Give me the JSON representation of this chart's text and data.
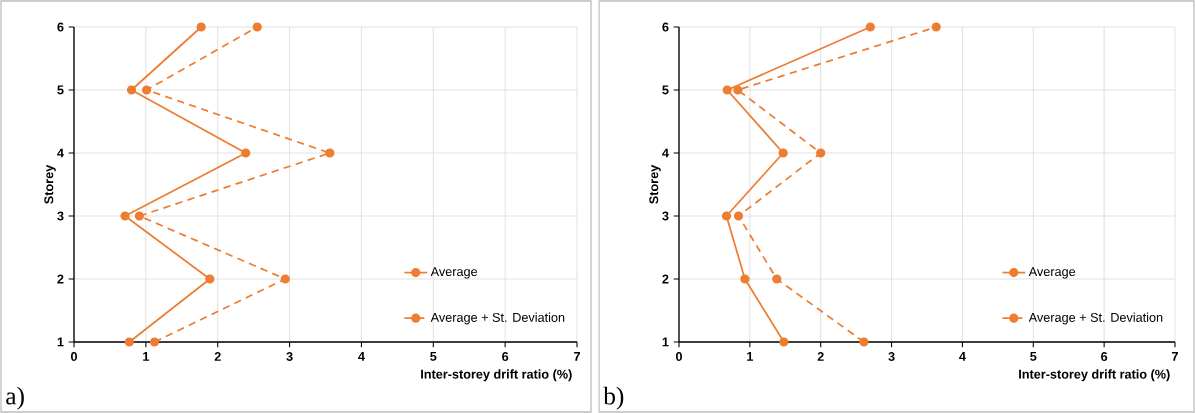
{
  "chart_data": [
    {
      "type": "line",
      "xlabel": "Inter-storey drift ratio (%)",
      "ylabel": "Storey",
      "annotations": [
        "a)"
      ],
      "xlim": [
        0,
        7
      ],
      "ylim": [
        1,
        6
      ],
      "xticks": [
        0,
        1,
        2,
        3,
        4,
        5,
        6,
        7
      ],
      "yticks": [
        1,
        2,
        3,
        4,
        5,
        6
      ],
      "grid": true,
      "legend": "bottom right",
      "marker": "circle",
      "series": [
        {
          "name": "Average",
          "color": "#ed7d31",
          "line_style": "solid",
          "x": [
            0.77,
            1.89,
            0.71,
            2.39,
            0.8,
            1.77
          ],
          "values": [
            1,
            2,
            3,
            4,
            5,
            6
          ]
        },
        {
          "name": "Average + St. Deviation",
          "color": "#ed7d31",
          "line_style": "dashed",
          "x": [
            1.12,
            2.94,
            0.91,
            3.56,
            1.01,
            2.55
          ],
          "values": [
            1,
            2,
            3,
            4,
            5,
            6
          ]
        }
      ]
    },
    {
      "type": "line",
      "xlabel": "Inter-storey drift ratio (%)",
      "ylabel": "Storey",
      "annotations": [
        "b)"
      ],
      "xlim": [
        0,
        7
      ],
      "ylim": [
        1,
        6
      ],
      "xticks": [
        0,
        1,
        2,
        3,
        4,
        5,
        6,
        7
      ],
      "yticks": [
        1,
        2,
        3,
        4,
        5,
        6
      ],
      "grid": true,
      "legend": "bottom right",
      "marker": "circle",
      "series": [
        {
          "name": "Average",
          "color": "#ed7d31",
          "line_style": "solid",
          "x": [
            1.48,
            0.93,
            0.67,
            1.47,
            0.68,
            2.7
          ],
          "values": [
            1,
            2,
            3,
            4,
            5,
            6
          ]
        },
        {
          "name": "Average + St. Deviation",
          "color": "#ed7d31",
          "line_style": "dashed",
          "x": [
            2.61,
            1.38,
            0.84,
            2.0,
            0.83,
            3.63
          ],
          "values": [
            1,
            2,
            3,
            4,
            5,
            6
          ]
        }
      ]
    }
  ]
}
